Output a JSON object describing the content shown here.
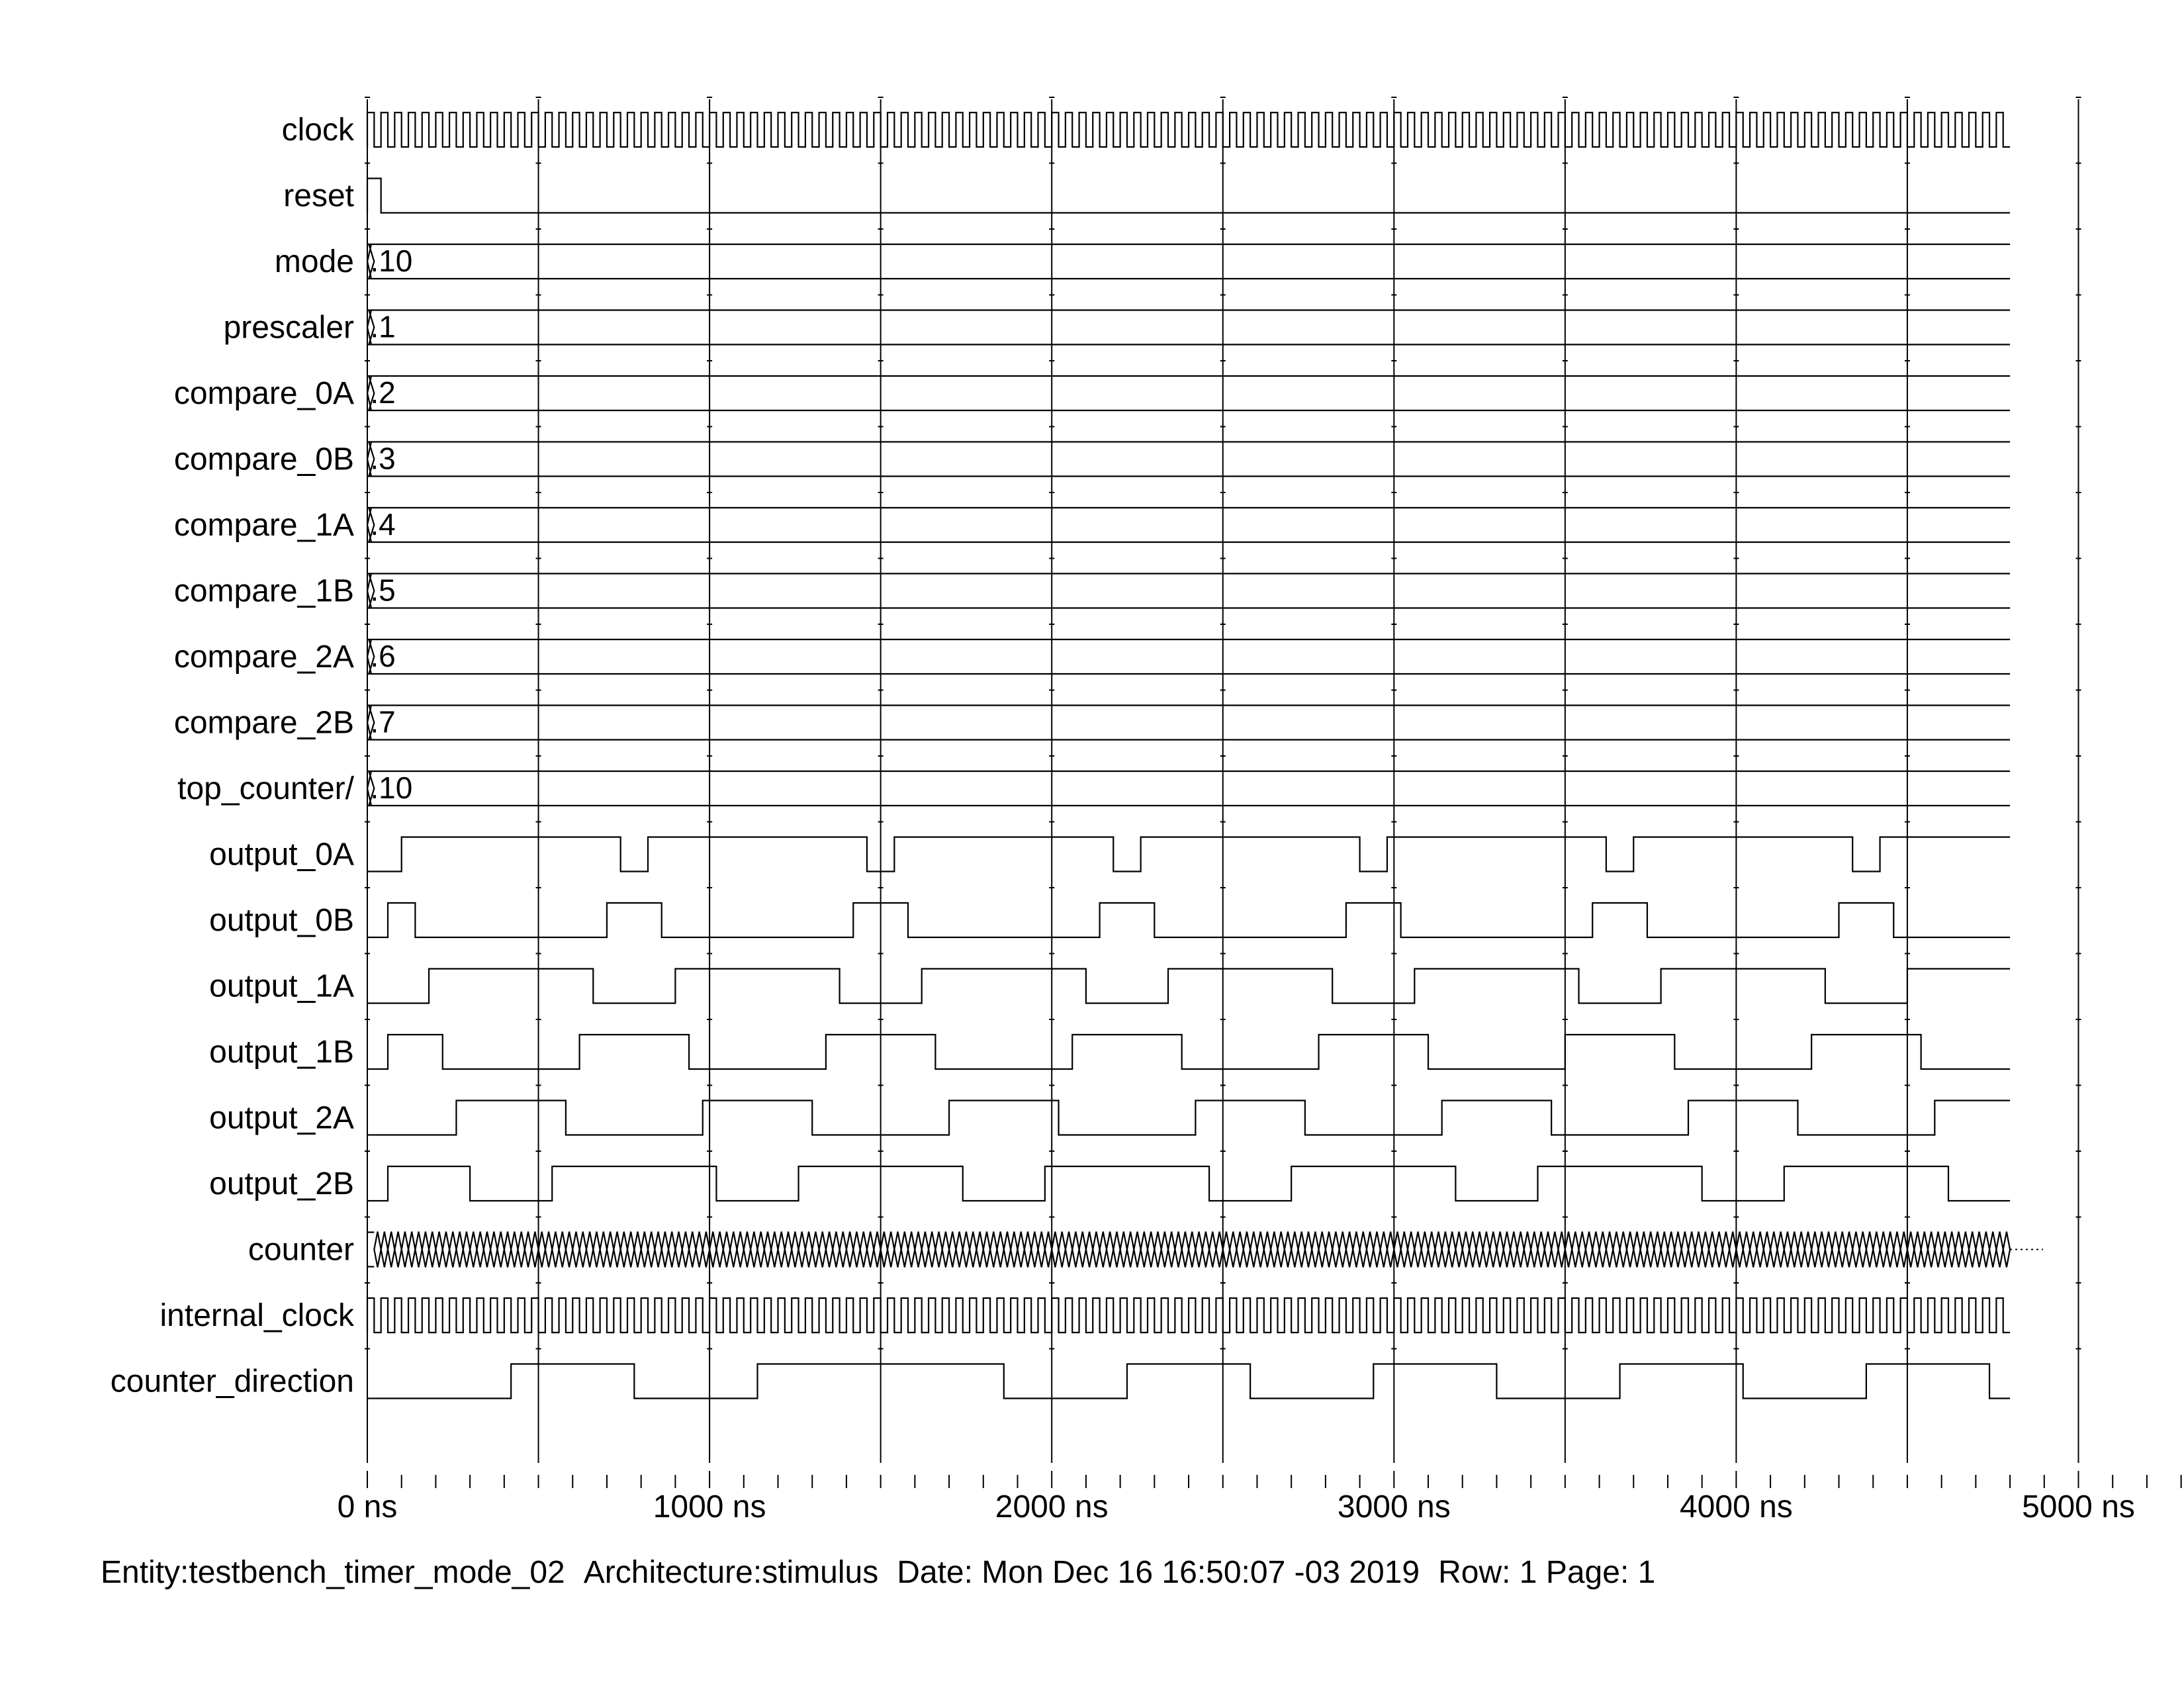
{
  "time_unit": "ns",
  "time_start": 0,
  "time_end": 4800,
  "axis": {
    "min": 0,
    "max": 5000,
    "major_step": 1000,
    "minor_step": 100,
    "grid_step": 500,
    "tick_labels": [
      "0 ns",
      "1000 ns",
      "2000 ns",
      "3000 ns",
      "4000 ns",
      "5000 ns"
    ]
  },
  "signals": [
    {
      "name": "clock",
      "type": "clock",
      "period": 40
    },
    {
      "name": "reset",
      "type": "bit",
      "initial": 1,
      "edges": [
        40
      ]
    },
    {
      "name": "mode",
      "type": "bus",
      "init_width": 20,
      "value": ".10"
    },
    {
      "name": "prescaler",
      "type": "bus",
      "init_width": 20,
      "value": ".1"
    },
    {
      "name": "compare_0A",
      "type": "bus",
      "init_width": 20,
      "value": ".2"
    },
    {
      "name": "compare_0B",
      "type": "bus",
      "init_width": 20,
      "value": ".3"
    },
    {
      "name": "compare_1A",
      "type": "bus",
      "init_width": 20,
      "value": ".4"
    },
    {
      "name": "compare_1B",
      "type": "bus",
      "init_width": 20,
      "value": ".5"
    },
    {
      "name": "compare_2A",
      "type": "bus",
      "init_width": 20,
      "value": ".6"
    },
    {
      "name": "compare_2B",
      "type": "bus",
      "init_width": 20,
      "value": ".7"
    },
    {
      "name": "top_counter/",
      "type": "bus",
      "init_width": 20,
      "value": ".10"
    },
    {
      "name": "output_0A",
      "type": "bit",
      "initial": 0,
      "edges": [
        100,
        740,
        820,
        1460,
        1540,
        2180,
        2260,
        2900,
        2980,
        3620,
        3700,
        4340,
        4420
      ]
    },
    {
      "name": "output_0B",
      "type": "bit",
      "initial": 0,
      "edges": [
        60,
        140,
        700,
        860,
        1420,
        1580,
        2140,
        2300,
        2860,
        3020,
        3580,
        3740,
        4300,
        4460
      ]
    },
    {
      "name": "output_1A",
      "type": "bit",
      "initial": 0,
      "edges": [
        180,
        660,
        900,
        1380,
        1620,
        2100,
        2340,
        2820,
        3060,
        3540,
        3780,
        4260,
        4500
      ]
    },
    {
      "name": "output_1B",
      "type": "bit",
      "initial": 0,
      "edges": [
        60,
        220,
        620,
        940,
        1340,
        1660,
        2060,
        2380,
        2780,
        3100,
        3500,
        3820,
        4220,
        4540
      ]
    },
    {
      "name": "output_2A",
      "type": "bit",
      "initial": 0,
      "edges": [
        260,
        580,
        980,
        1300,
        1700,
        2020,
        2420,
        2740,
        3140,
        3460,
        3860,
        4180,
        4580
      ]
    },
    {
      "name": "output_2B",
      "type": "bit",
      "initial": 0,
      "edges": [
        60,
        300,
        540,
        1020,
        1260,
        1740,
        1980,
        2460,
        2700,
        3180,
        3420,
        3900,
        4140,
        4620
      ]
    },
    {
      "name": "counter",
      "type": "busfast",
      "period": 40
    },
    {
      "name": "internal_clock",
      "type": "clock",
      "period": 40
    },
    {
      "name": "counter_direction",
      "type": "bit",
      "initial": 0,
      "edges": [
        420,
        780,
        1140,
        1860,
        2220,
        2580,
        2940,
        3300,
        3660,
        4020,
        4380,
        4740
      ]
    }
  ],
  "footer": {
    "entity": "Entity:testbench_timer_mode_02",
    "architecture": "Architecture:stimulus",
    "date": "Date: Mon Dec 16 16:50:07 -03 2019",
    "rowpage": "Row: 1 Page: 1"
  }
}
